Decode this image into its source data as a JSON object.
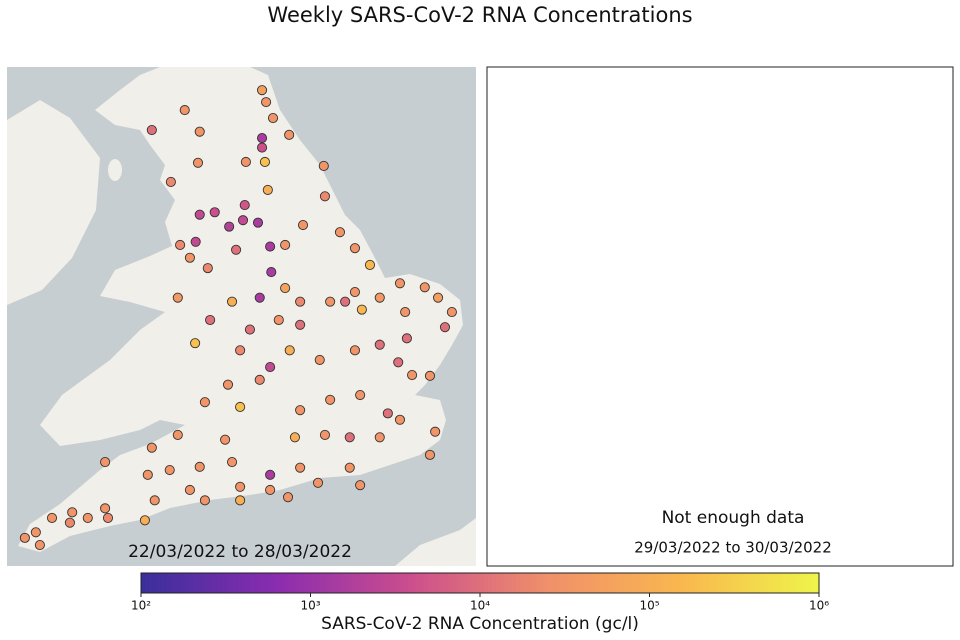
{
  "chart_data": {
    "type": "map",
    "title": "Weekly SARS-CoV-2 RNA Concentrations",
    "panels": [
      {
        "label": "22/03/2022 to 28/03/2022"
      },
      {
        "message": "Not enough data",
        "label": "29/03/2022 to 30/03/2022"
      }
    ],
    "lon": [
      -1.59,
      -1.52,
      -1.4,
      -1.59,
      -1.59,
      -1.54,
      -1.12,
      -3.5,
      -2.93,
      -2.67,
      -2.7,
      -3.17,
      -1.87,
      -1.49,
      -0.52,
      -0.5,
      -1.89,
      -1.66,
      -1.92,
      -2.67,
      -2.41,
      -2.16,
      -2.74,
      -3.01,
      -2.84,
      -2.53,
      -2.04,
      -1.45,
      -1.19,
      -0.88,
      -0.24,
      0.02,
      0.28,
      -1.43,
      -1.63,
      -1.19,
      -2.11,
      -0.93,
      -3.05,
      -2.49,
      -1.8,
      -1.3,
      -0.93,
      -0.41,
      -0.15,
      0.14,
      0.02,
      0.45,
      0.8,
      1.23,
      1.46,
      1.7,
      1.58,
      0.89,
      0.92,
      -2.75,
      -1.97,
      -1.45,
      -1.11,
      -0.59,
      0.02,
      0.45,
      0.77,
      1.01,
      1.32,
      -1.63,
      -2.18,
      -2.58,
      -1.97,
      -0.93,
      -0.41,
      0.11,
      0.59,
      0.8,
      -3.05,
      -2.23,
      -1.02,
      -0.5,
      -0.07,
      0.45,
      1.41,
      1.32,
      -3.5,
      -4.31,
      -3.19,
      -2.67,
      -2.11,
      -1.45,
      -0.93,
      -0.07,
      -3.57,
      -2.84,
      -1.97,
      -1.45,
      -0.62,
      0.11,
      -2.58,
      -3.45,
      -1.97,
      -1.14,
      -3.62,
      -4.31,
      -4.26,
      -4.88,
      -5.23,
      -4.92,
      -4.61,
      -5.51,
      -5.7,
      -5.44
    ],
    "lat": [
      55.7,
      55.55,
      55.35,
      55.1,
      54.98,
      54.8,
      55.14,
      55.2,
      55.45,
      55.18,
      54.79,
      54.55,
      54.8,
      54.45,
      54.75,
      54.37,
      54.26,
      54.04,
      54.07,
      54.14,
      54.17,
      53.99,
      53.8,
      53.76,
      53.6,
      53.47,
      53.7,
      53.74,
      53.76,
      54.01,
      53.92,
      53.72,
      53.51,
      53.42,
      53.1,
      53.22,
      53.05,
      53.05,
      53.1,
      52.82,
      52.7,
      52.82,
      52.76,
      53.05,
      53.05,
      52.95,
      53.17,
      53.1,
      53.28,
      53.23,
      53.1,
      52.92,
      52.73,
      52.92,
      52.59,
      52.53,
      52.44,
      52.23,
      52.44,
      52.32,
      52.44,
      52.51,
      52.29,
      52.13,
      52.12,
      52.07,
      52.01,
      51.79,
      51.73,
      51.69,
      51.82,
      51.88,
      51.65,
      51.57,
      51.38,
      51.32,
      51.35,
      51.38,
      51.35,
      51.35,
      51.42,
      51.13,
      51.22,
      51.04,
      50.94,
      50.98,
      51.04,
      50.88,
      50.97,
      50.97,
      50.88,
      50.69,
      50.73,
      50.69,
      50.78,
      50.75,
      50.56,
      50.56,
      50.56,
      50.6,
      50.31,
      50.46,
      50.34,
      50.41,
      50.34,
      50.28,
      50.34,
      50.16,
      50.09,
      50.0
    ],
    "values": [
      50000,
      30000,
      30000,
      1500,
      4000,
      200000,
      30000,
      10000,
      30000,
      30000,
      30000,
      20000,
      30000,
      100000,
      30000,
      20000,
      5000,
      1500,
      3000,
      3000,
      4000,
      2000,
      3000,
      20000,
      30000,
      20000,
      10000,
      1500,
      30000,
      30000,
      30000,
      30000,
      150000,
      1500,
      1500,
      60000,
      100000,
      20000,
      40000,
      10000,
      10000,
      30000,
      10000,
      30000,
      10000,
      150000,
      30000,
      40000,
      30000,
      30000,
      50000,
      30000,
      10000,
      30000,
      10000,
      200000,
      20000,
      3000,
      100000,
      30000,
      30000,
      10000,
      10000,
      30000,
      30000,
      20000,
      30000,
      30000,
      200000,
      30000,
      30000,
      30000,
      10000,
      30000,
      30000,
      30000,
      100000,
      30000,
      10000,
      30000,
      30000,
      30000,
      30000,
      30000,
      30000,
      30000,
      30000,
      1500,
      30000,
      30000,
      30000,
      30000,
      30000,
      30000,
      30000,
      30000,
      30000,
      30000,
      100000,
      30000,
      100000,
      30000,
      20000,
      30000,
      30000,
      20000,
      30000,
      30000,
      30000,
      30000
    ],
    "colorbar": {
      "label": "SARS-CoV-2 RNA Concentration (gc/l)",
      "log": true,
      "lim": [
        100,
        1000000
      ],
      "ticks": [
        {
          "value": 100,
          "label": "10²"
        },
        {
          "value": 1000,
          "label": "10³"
        },
        {
          "value": 10000,
          "label": "10⁴"
        },
        {
          "value": 100000,
          "label": "10⁵"
        },
        {
          "value": 1000000,
          "label": "10⁶"
        }
      ],
      "colors": [
        "#3a2f9c",
        "#8a2cb0",
        "#cc4f8c",
        "#f0906a",
        "#f9b84e",
        "#eef54a"
      ]
    }
  }
}
